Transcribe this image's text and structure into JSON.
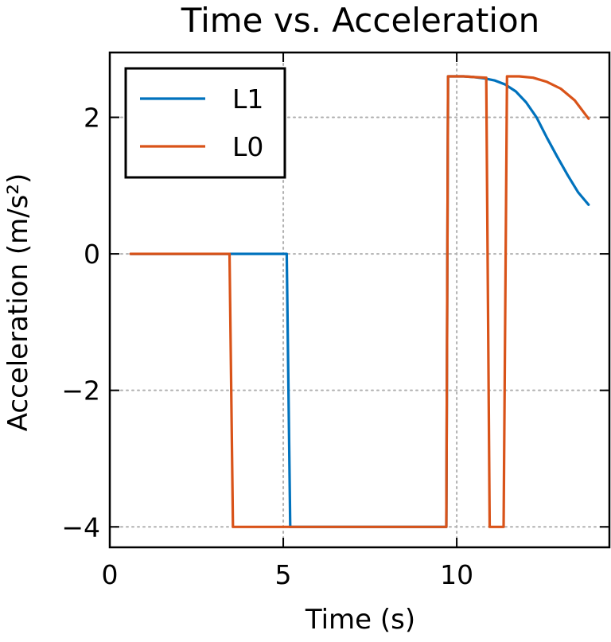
{
  "chart_data": {
    "type": "line",
    "title": "Time vs. Acceleration",
    "xlabel": "Time (s)",
    "ylabel": "Acceleration (m/s²)",
    "xlim": [
      0,
      14.4
    ],
    "ylim": [
      -4.3,
      2.95
    ],
    "xticks": [
      0,
      5,
      10
    ],
    "xtick_labels": [
      "0",
      "5",
      "10"
    ],
    "yticks": [
      2,
      0,
      -2,
      -4
    ],
    "ytick_labels": [
      "2",
      "0",
      "−2",
      "−4"
    ],
    "grid": true,
    "legend_position": "top-left",
    "series": [
      {
        "name": "L1",
        "color": "#0072bd",
        "x": [
          0.6,
          5.1,
          5.2,
          9.7,
          9.75,
          10.2,
          10.5,
          10.8,
          11.1,
          11.4,
          11.7,
          12.0,
          12.3,
          12.6,
          12.9,
          13.2,
          13.5,
          13.8
        ],
        "y": [
          0.0,
          0.0,
          -4.0,
          -4.0,
          2.6,
          2.6,
          2.59,
          2.57,
          2.54,
          2.48,
          2.38,
          2.22,
          2.0,
          1.7,
          1.42,
          1.15,
          0.9,
          0.72
        ]
      },
      {
        "name": "L0",
        "color": "#d95319",
        "x": [
          0.6,
          3.45,
          3.55,
          9.7,
          9.75,
          10.2,
          10.5,
          10.85,
          10.95,
          11.35,
          11.45,
          11.8,
          12.2,
          12.6,
          13.0,
          13.4,
          13.8
        ],
        "y": [
          0.0,
          0.0,
          -4.0,
          -4.0,
          2.6,
          2.6,
          2.59,
          2.58,
          -4.0,
          -4.0,
          2.6,
          2.6,
          2.58,
          2.52,
          2.42,
          2.25,
          1.98
        ]
      }
    ]
  }
}
